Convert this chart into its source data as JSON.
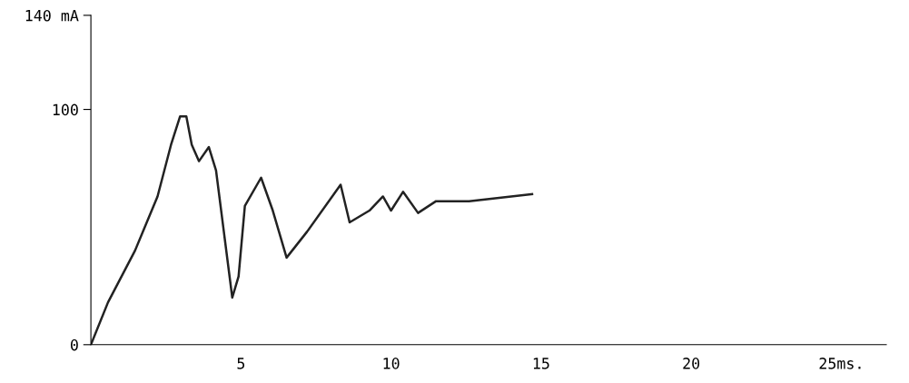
{
  "chart_data": {
    "type": "line",
    "x": [
      0,
      0.57,
      1.47,
      2.22,
      2.67,
      2.97,
      3.18,
      3.36,
      3.6,
      3.93,
      4.17,
      4.47,
      4.71,
      4.92,
      5.13,
      5.67,
      6.06,
      6.52,
      7.2,
      8.32,
      8.62,
      9.28,
      9.73,
      10.0,
      10.4,
      10.9,
      11.5,
      12.6,
      14.7
    ],
    "series": [
      {
        "color": "#222222",
        "values": [
          0,
          18,
          40,
          63,
          85,
          97,
          97,
          85,
          78,
          84,
          74,
          44,
          20,
          29,
          59,
          71,
          57,
          37,
          48,
          68,
          52,
          57,
          63,
          57,
          65,
          56,
          61,
          61,
          64
        ]
      }
    ],
    "xlim": [
      0,
      26.5
    ],
    "ylim": [
      0,
      140
    ],
    "xticks": [
      5,
      10,
      15,
      20,
      {
        "value": 25,
        "label": "25ms."
      }
    ],
    "yticks": [
      0,
      100,
      {
        "value": 140,
        "label": "140 mA"
      }
    ],
    "grid": false,
    "legend": false,
    "marker": "none",
    "line_style": "solid"
  }
}
